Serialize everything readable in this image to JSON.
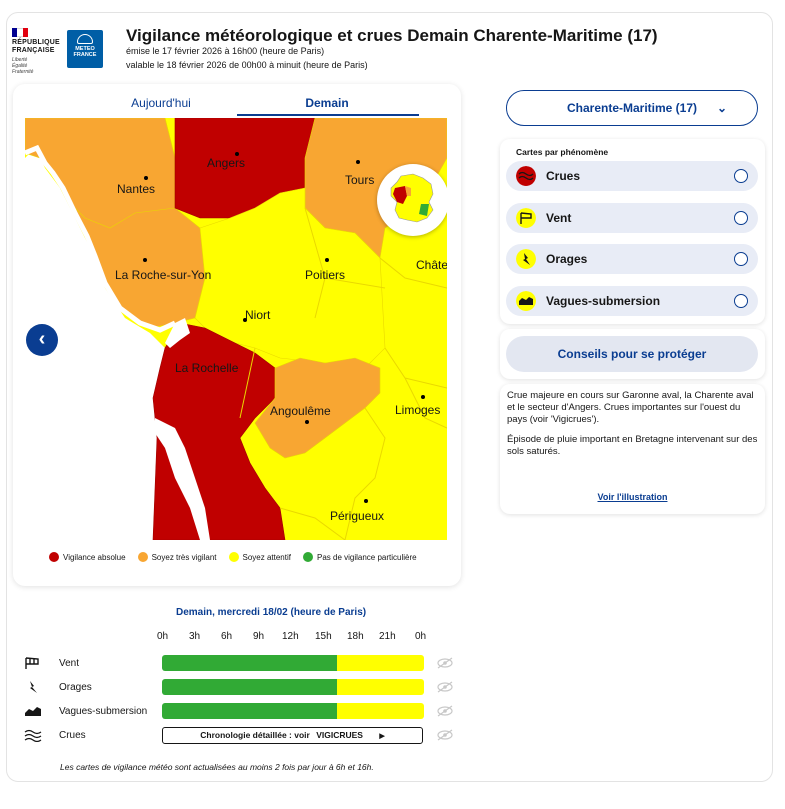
{
  "header": {
    "republic_lines": [
      "RÉPUBLIQUE",
      "FRANÇAISE"
    ],
    "motto": [
      "Liberté",
      "Égalité",
      "Fraternité"
    ],
    "meteo_logo": [
      "METEO",
      "FRANCE"
    ],
    "title": "Vigilance météorologique et crues Demain Charente-Maritime (17)",
    "issued": "émise le 17 février 2026 à 16h00 (heure de Paris)",
    "valid": "valable le 18 février 2026 de 00h00 à minuit (heure de Paris)"
  },
  "tabs": [
    {
      "label": "Aujourd'hui",
      "active": false
    },
    {
      "label": "Demain",
      "active": true
    }
  ],
  "map": {
    "cities": [
      "Angers",
      "Tours",
      "Nantes",
      "La Roche-sur-Yon",
      "Poitiers",
      "Châte",
      "Niort",
      "La Rochelle",
      "Angoulême",
      "Limoges",
      "Périgueux"
    ]
  },
  "legend": [
    {
      "label": "Vigilance absolue",
      "color": "#c00000"
    },
    {
      "label": "Soyez très vigilant",
      "color": "#f8a632"
    },
    {
      "label": "Soyez attentif",
      "color": "#ffff00"
    },
    {
      "label": "Pas de vigilance particulière",
      "color": "#31aa35"
    }
  ],
  "timeline": {
    "title": "Demain, mercredi 18/02 (heure de Paris)",
    "hours": [
      "0h",
      "3h",
      "6h",
      "9h",
      "12h",
      "15h",
      "18h",
      "21h",
      "0h"
    ],
    "rows": [
      {
        "label": "Vent",
        "icon": "wind-icon",
        "segments": [
          {
            "level": "green",
            "fraction": 0.667
          },
          {
            "level": "yellow",
            "fraction": 0.333
          }
        ]
      },
      {
        "label": "Orages",
        "icon": "lightning-icon",
        "segments": [
          {
            "level": "green",
            "fraction": 0.667
          },
          {
            "level": "yellow",
            "fraction": 0.333
          }
        ]
      },
      {
        "label": "Vagues-submersion",
        "icon": "waves-icon",
        "segments": [
          {
            "level": "green",
            "fraction": 0.667
          },
          {
            "level": "yellow",
            "fraction": 0.333
          }
        ]
      },
      {
        "label": "Crues",
        "icon": "flood-icon"
      }
    ],
    "crues_link_prefix": "Chronologie détaillée : voir",
    "crues_link_brand": "VIGICRUES",
    "note": "Les cartes de vigilance météo sont actualisées au moins 2 fois par jour à 6h et 16h."
  },
  "colors": {
    "green": "#31aa35",
    "yellow": "#ffff00",
    "orange": "#f8a632",
    "red": "#c00000",
    "navy": "#0a3d91"
  },
  "sidebar": {
    "department": "Charente-Maritime (17)",
    "phenomena_heading": "Cartes par phénomène",
    "phenomena": [
      {
        "label": "Crues",
        "icon": "flood-icon",
        "color": "#c00000"
      },
      {
        "label": "Vent",
        "icon": "wind-icon",
        "color": "#ffff00"
      },
      {
        "label": "Orages",
        "icon": "lightning-icon",
        "color": "#ffff00"
      },
      {
        "label": "Vagues-submersion",
        "icon": "waves-icon",
        "color": "#ffff00"
      }
    ],
    "advice_button": "Conseils pour se protéger",
    "paragraph1": "Crue majeure en cours sur Garonne aval, la Charente aval et le secteur d'Angers. Crues importantes sur l'ouest du pays (voir 'Vigicrues').",
    "paragraph2": "Épisode de pluie important en Bretagne intervenant sur des sols saturés.",
    "illustration_link": "Voir l'illustration"
  }
}
